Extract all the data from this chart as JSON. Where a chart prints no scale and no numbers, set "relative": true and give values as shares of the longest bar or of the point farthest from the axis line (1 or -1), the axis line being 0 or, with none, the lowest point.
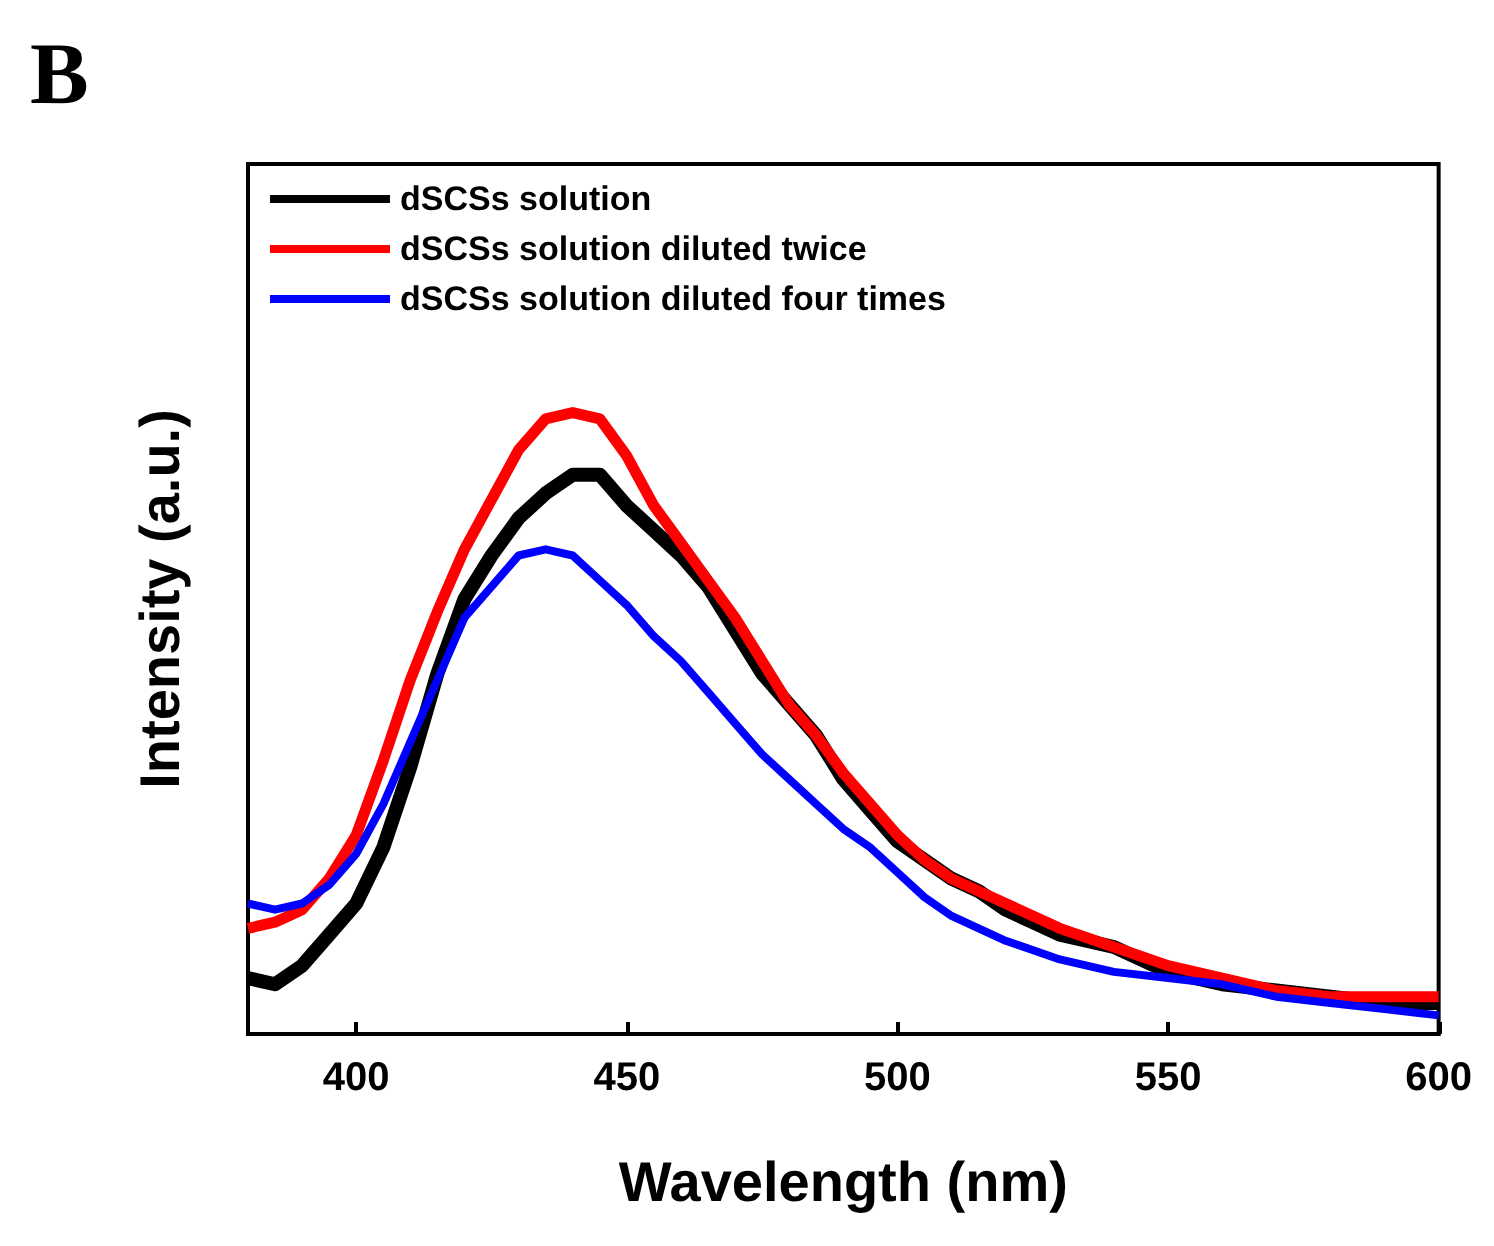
{
  "chart_data": {
    "type": "line",
    "relative": true,
    "xlabel": "Wavelength (nm)",
    "ylabel": "Intensity (a.u.)",
    "annotations": [
      "B"
    ],
    "xlim": [
      380,
      600
    ],
    "xticks": [
      400,
      450,
      500,
      550,
      600
    ],
    "grid": false,
    "legend": "top left",
    "marker": "none",
    "line_style": "solid",
    "series": [
      {
        "name": "dSCSs solution",
        "color": "#000000",
        "x": [
          380,
          385,
          390,
          395,
          400,
          405,
          410,
          415,
          420,
          425,
          430,
          435,
          440,
          445,
          450,
          455,
          460,
          465,
          470,
          475,
          480,
          485,
          490,
          495,
          500,
          505,
          510,
          515,
          520,
          525,
          530,
          540,
          550,
          560,
          570,
          580,
          590,
          600
        ],
        "values": [
          0.09,
          0.08,
          0.11,
          0.16,
          0.21,
          0.3,
          0.43,
          0.58,
          0.7,
          0.77,
          0.83,
          0.87,
          0.9,
          0.9,
          0.85,
          0.81,
          0.77,
          0.72,
          0.65,
          0.58,
          0.53,
          0.48,
          0.41,
          0.36,
          0.31,
          0.28,
          0.25,
          0.23,
          0.2,
          0.18,
          0.16,
          0.14,
          0.1,
          0.08,
          0.07,
          0.06,
          0.05,
          0.05
        ]
      },
      {
        "name": "dSCSs solution diluted twice",
        "color": "#ff0000",
        "x": [
          380,
          385,
          390,
          395,
          400,
          405,
          410,
          415,
          420,
          425,
          430,
          435,
          440,
          445,
          450,
          455,
          460,
          465,
          470,
          475,
          480,
          485,
          490,
          495,
          500,
          505,
          510,
          520,
          530,
          540,
          550,
          560,
          570,
          580,
          590,
          600
        ],
        "values": [
          0.17,
          0.18,
          0.2,
          0.25,
          0.32,
          0.44,
          0.57,
          0.68,
          0.78,
          0.86,
          0.94,
          0.99,
          1,
          0.99,
          0.93,
          0.85,
          0.79,
          0.73,
          0.67,
          0.6,
          0.53,
          0.48,
          0.42,
          0.37,
          0.32,
          0.28,
          0.25,
          0.21,
          0.17,
          0.14,
          0.11,
          0.09,
          0.07,
          0.06,
          0.06,
          0.06
        ]
      },
      {
        "name": "dSCSs solution diluted four times",
        "color": "#0000ff",
        "x": [
          380,
          385,
          390,
          395,
          400,
          405,
          410,
          415,
          420,
          425,
          430,
          435,
          440,
          445,
          450,
          455,
          460,
          465,
          470,
          475,
          480,
          485,
          490,
          495,
          500,
          505,
          510,
          515,
          520,
          530,
          540,
          550,
          560,
          570,
          580,
          590,
          600
        ],
        "values": [
          0.21,
          0.2,
          0.21,
          0.24,
          0.29,
          0.37,
          0.47,
          0.57,
          0.67,
          0.72,
          0.77,
          0.78,
          0.77,
          0.73,
          0.69,
          0.64,
          0.6,
          0.55,
          0.5,
          0.45,
          0.41,
          0.37,
          0.33,
          0.3,
          0.26,
          0.22,
          0.19,
          0.17,
          0.15,
          0.12,
          0.1,
          0.09,
          0.08,
          0.06,
          0.05,
          0.04,
          0.03
        ]
      }
    ]
  }
}
